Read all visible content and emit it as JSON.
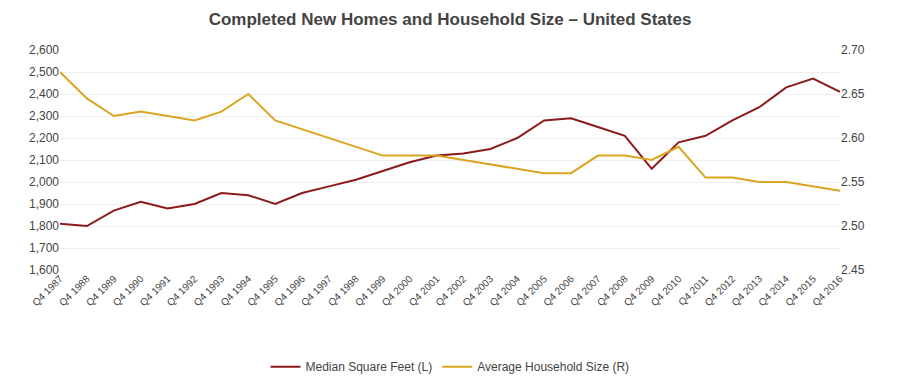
{
  "chart_data": {
    "type": "line",
    "title": "Completed New Homes and Household Size – United States",
    "categories": [
      "Q4 1987",
      "Q4 1988",
      "Q4 1989",
      "Q4 1990",
      "Q4 1991",
      "Q4 1992",
      "Q4 1993",
      "Q4 1994",
      "Q4 1995",
      "Q4 1996",
      "Q4 1997",
      "Q4 1998",
      "Q4 1999",
      "Q4 2000",
      "Q4 2001",
      "Q4 2002",
      "Q4 2003",
      "Q4 2004",
      "Q4 2005",
      "Q4 2006",
      "Q4 2007",
      "Q4 2008",
      "Q4 2009",
      "Q4 2010",
      "Q4 2011",
      "Q4 2012",
      "Q4 2013",
      "Q4 2014",
      "Q4 2015",
      "Q4 2016"
    ],
    "series": [
      {
        "name": "Median Square Feet (L)",
        "color": "#8B1A1A",
        "values": [
          1810,
          1800,
          1870,
          1910,
          1880,
          1900,
          1950,
          1940,
          1900,
          1950,
          1980,
          2010,
          2050,
          2090,
          2120,
          2130,
          2150,
          2200,
          2280,
          2290,
          2250,
          2210,
          2060,
          2180,
          2210,
          2280,
          2340,
          2430,
          2470,
          2410
        ]
      },
      {
        "name": "Average Household Size (R)",
        "color": "#DAA520",
        "axis": "y2",
        "values": [
          2.675,
          2.645,
          2.625,
          2.63,
          2.625,
          2.62,
          2.63,
          2.65,
          2.62,
          2.61,
          2.6,
          2.59,
          2.58,
          2.58,
          2.58,
          2.575,
          2.57,
          2.565,
          2.56,
          2.56,
          2.58,
          2.58,
          2.575,
          2.59,
          2.555,
          2.555,
          2.55,
          2.55,
          2.545,
          2.54
        ]
      }
    ],
    "ylim": [
      1600,
      2600
    ],
    "yticks": [
      {
        "value": 1600,
        "label": "1,600"
      },
      {
        "value": 1700,
        "label": "1,700"
      },
      {
        "value": 1800,
        "label": "1,800"
      },
      {
        "value": 1900,
        "label": "1,900"
      },
      {
        "value": 2000,
        "label": "2,000"
      },
      {
        "value": 2100,
        "label": "2,100"
      },
      {
        "value": 2200,
        "label": "2,200"
      },
      {
        "value": 2300,
        "label": "2,300"
      },
      {
        "value": 2400,
        "label": "2,400"
      },
      {
        "value": 2500,
        "label": "2,500"
      },
      {
        "value": 2600,
        "label": "2,600"
      }
    ],
    "y2lim": [
      2.45,
      2.7
    ],
    "y2ticks": [
      2.45,
      {
        "value": 2.5,
        "label": "2.50"
      },
      2.55,
      {
        "value": 2.6,
        "label": "2.60"
      },
      2.65,
      {
        "value": 2.7,
        "label": "2.70"
      }
    ],
    "grid": true,
    "legend": "bottom"
  }
}
